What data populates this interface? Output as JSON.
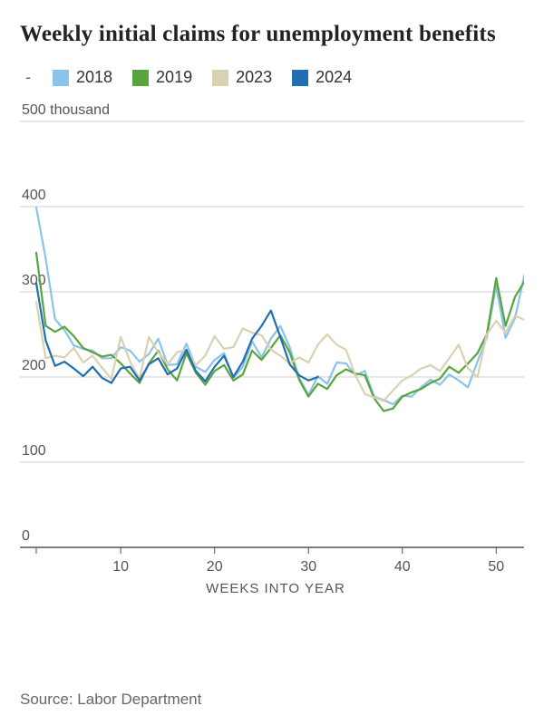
{
  "title": "Weekly initial claims for unemployment benefits",
  "legend_leader": "-",
  "source": "Source: Labor Department",
  "chart": {
    "type": "line",
    "xlabel": "WEEKS INTO YEAR",
    "y_unit_suffix": " thousand",
    "xlim": [
      1,
      52
    ],
    "ylim": [
      0,
      500
    ],
    "xticks": [
      10,
      20,
      30,
      40,
      50
    ],
    "yticks": [
      0,
      100,
      200,
      300,
      400,
      500
    ],
    "grid_color": "#cfcfcf",
    "axis_color": "#555555",
    "background_color": "#ffffff",
    "line_width": 2.2,
    "label_fontsize": 16,
    "axis_title_fontsize": 15,
    "series": [
      {
        "name": "2018",
        "color": "#8bc3eb",
        "values": [
          399,
          339,
          268,
          255,
          237,
          233,
          231,
          222,
          222,
          235,
          231,
          218,
          227,
          245,
          214,
          215,
          239,
          212,
          206,
          220,
          228,
          199,
          212,
          242,
          223,
          245,
          260,
          235,
          199,
          179,
          201,
          192,
          217,
          216,
          202,
          207,
          177,
          173,
          168,
          178,
          177,
          188,
          197,
          191,
          203,
          196,
          188,
          218,
          246,
          307,
          246,
          269,
          320
        ]
      },
      {
        "name": "2019",
        "color": "#5aa43d",
        "values": [
          346,
          260,
          253,
          259,
          248,
          234,
          229,
          224,
          226,
          216,
          204,
          193,
          216,
          231,
          209,
          196,
          228,
          205,
          191,
          207,
          214,
          196,
          203,
          231,
          220,
          234,
          249,
          229,
          197,
          177,
          192,
          186,
          202,
          209,
          204,
          202,
          175,
          160,
          163,
          177,
          182,
          186,
          193,
          198,
          212,
          205,
          216,
          228,
          250,
          316,
          260,
          294,
          312
        ]
      },
      {
        "name": "2023",
        "color": "#d9d2b2",
        "values": [
          288,
          222,
          225,
          223,
          234,
          217,
          225,
          211,
          198,
          247,
          218,
          198,
          247,
          229,
          215,
          229,
          232,
          214,
          225,
          248,
          233,
          235,
          257,
          252,
          249,
          232,
          225,
          216,
          223,
          217,
          238,
          250,
          238,
          232,
          202,
          180,
          176,
          172,
          184,
          196,
          202,
          210,
          214,
          207,
          222,
          238,
          210,
          200,
          250,
          266,
          252,
          272,
          267
        ]
      },
      {
        "name": "2024",
        "color": "#1f6fb2",
        "values": [
          310,
          243,
          213,
          218,
          210,
          201,
          212,
          199,
          193,
          210,
          212,
          196,
          215,
          222,
          203,
          210,
          232,
          207,
          195,
          212,
          225,
          200,
          218,
          245,
          260,
          278,
          247,
          215,
          202,
          196,
          200
        ]
      }
    ]
  }
}
